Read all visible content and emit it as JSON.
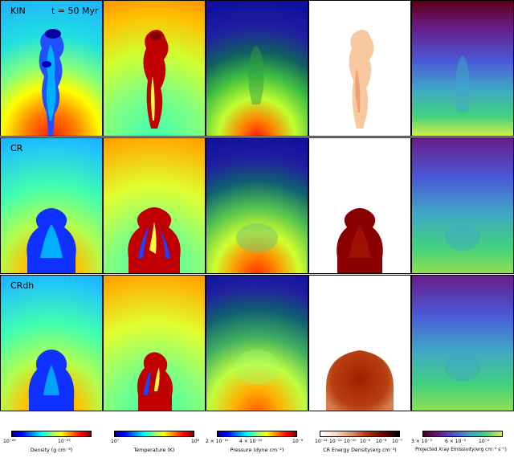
{
  "rows": [
    {
      "label": "KIN",
      "time": "t = 50 Myr"
    },
    {
      "label": "CR",
      "time": ""
    },
    {
      "label": "CRdh",
      "time": ""
    }
  ],
  "columns": [
    {
      "quantity": "density",
      "colormap": "jet"
    },
    {
      "quantity": "temperature",
      "colormap": "jet"
    },
    {
      "quantity": "pressure",
      "colormap": "jet"
    },
    {
      "quantity": "cr_energy_density",
      "colormap": "gist_heat_r"
    },
    {
      "quantity": "xray_emissivity",
      "colormap": "viridis-like"
    }
  ],
  "colorbars": [
    {
      "label": "Density (g cm⁻³)",
      "ticks": [
        "10⁻²⁶",
        "10⁻²⁵"
      ]
    },
    {
      "label": "Temperature (K)",
      "ticks": [
        "10⁷",
        "10⁸"
      ]
    },
    {
      "label": "Pressure (dyne cm⁻²)",
      "ticks": [
        "2 × 10⁻¹⁰",
        "4 × 10⁻¹⁰",
        "10⁻⁹"
      ]
    },
    {
      "label": "CR Energy Density(erg cm⁻³)",
      "ticks": [
        "10⁻¹²",
        "10⁻¹¹",
        "10⁻¹⁰",
        "10⁻⁹",
        "10⁻⁸",
        "10⁻⁷"
      ]
    },
    {
      "label": "Projected Xray Emissivity(erg cm⁻² s⁻¹)",
      "ticks": [
        "3 × 10⁻³",
        "6 × 10⁻³",
        "10⁻²"
      ]
    }
  ],
  "colors": {
    "jet": [
      "#00007f",
      "#0000ff",
      "#0080ff",
      "#00ffff",
      "#80ff80",
      "#ffff00",
      "#ff8000",
      "#ff0000",
      "#7f0000"
    ],
    "cr": [
      "#ffffff",
      "#f6d7c0",
      "#e09060",
      "#b03000",
      "#700000",
      "#000000"
    ],
    "xray": [
      "#4a0026",
      "#6a1a8a",
      "#4a5ad6",
      "#3fa6c8",
      "#42d080",
      "#d8f040"
    ]
  }
}
